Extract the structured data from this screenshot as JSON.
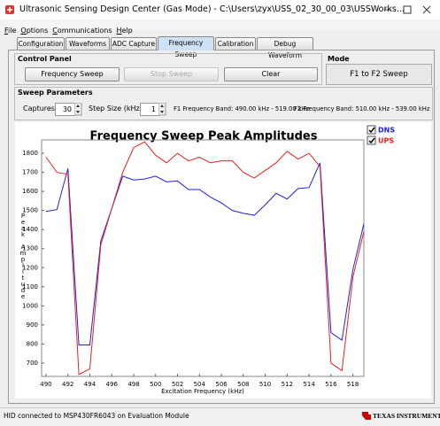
{
  "window": {
    "title": "Ultrasonic Sensing Design Center (Gas Mode) - C:\\Users\\zyx\\USS_02_30_00_03\\USSWorks...",
    "menu": [
      "File",
      "Options",
      "Communications",
      "Help"
    ]
  },
  "tabs": [
    "Configuration",
    "Waveforms",
    "ADC Capture",
    "Frequency Sweep",
    "Calibration",
    "Debug Waveform"
  ],
  "control_panel": {
    "title": "Control Panel",
    "buttons": [
      "Frequency Sweep",
      "Stop Sweep",
      "Clear"
    ]
  },
  "mode": {
    "title": "Mode",
    "value": "F1 to F2 Sweep"
  },
  "sweep_parameters": {
    "title": "Sweep Parameters",
    "captures_label": "Captures:",
    "captures": 30,
    "step_label": "Step Size (kHz):",
    "step": 1,
    "f1_band": "F1 Frequency Band: 490.00 kHz - 519.00 kHz",
    "f2_band": "F2 Frequency Band: 510.00 kHz - 539.00 kHz"
  },
  "chart_data": {
    "type": "line",
    "title": "Frequency Sweep Peak Amplitudes",
    "xlabel": "Excitation Frequency (kHz)",
    "ylabel": "Peak Amplitude",
    "x": [
      490,
      491,
      492,
      493,
      494,
      495,
      496,
      497,
      498,
      499,
      500,
      501,
      502,
      503,
      504,
      505,
      506,
      507,
      508,
      509,
      510,
      511,
      512,
      513,
      514,
      515,
      516,
      517,
      518,
      519
    ],
    "series": [
      {
        "name": "DNS",
        "color": "#2020e0",
        "values": [
          1495,
          1505,
          1720,
          795,
          795,
          1340,
          1510,
          1680,
          1660,
          1665,
          1680,
          1650,
          1655,
          1610,
          1610,
          1570,
          1540,
          1500,
          1485,
          1475,
          1530,
          1590,
          1560,
          1615,
          1620,
          1750,
          860,
          820,
          1190,
          1430
        ]
      },
      {
        "name": "UPS",
        "color": "#e82020",
        "values": [
          1780,
          1700,
          1690,
          640,
          670,
          1320,
          1510,
          1700,
          1830,
          1860,
          1790,
          1750,
          1800,
          1760,
          1780,
          1750,
          1760,
          1760,
          1700,
          1670,
          1710,
          1750,
          1810,
          1770,
          1800,
          1730,
          700,
          660,
          1150,
          1390
        ]
      }
    ],
    "xlim": [
      489.6,
      519
    ],
    "xticks": [
      490,
      492,
      494,
      496,
      498,
      500,
      502,
      504,
      506,
      508,
      510,
      512,
      514,
      516,
      518
    ],
    "ylim": [
      630,
      1870
    ],
    "yticks": [
      700,
      800,
      900,
      1000,
      1100,
      1200,
      1300,
      1400,
      1500,
      1600,
      1700,
      1800
    ],
    "grid": false,
    "legend": "top-right"
  },
  "status": "HID connected to MSP430FR6043 on Evaluation Module",
  "logo": "TEXAS INSTRUMENTS"
}
